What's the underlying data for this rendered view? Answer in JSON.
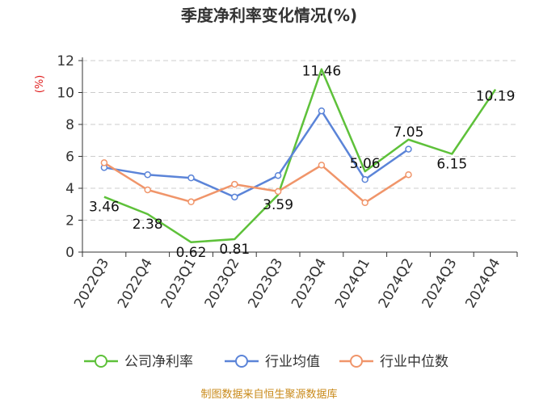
{
  "chart_data": {
    "type": "line",
    "title": "季度净利率变化情况(%)",
    "unit_label": "(%)",
    "categories": [
      "2022Q3",
      "2022Q4",
      "2023Q1",
      "2023Q2",
      "2023Q3",
      "2023Q4",
      "2024Q1",
      "2024Q2",
      "2024Q3",
      "2024Q4"
    ],
    "ylim": [
      0,
      12
    ],
    "yticks": [
      0,
      2,
      4,
      6,
      8,
      10,
      12
    ],
    "grid": true,
    "legend_position": "bottom",
    "series": [
      {
        "name": "公司净利率",
        "color": "#5ec13a",
        "values": [
          3.46,
          2.38,
          0.62,
          0.81,
          3.59,
          11.46,
          5.06,
          7.05,
          6.15,
          10.19
        ],
        "labels": [
          "3.46",
          "2.38",
          "0.62",
          "0.81",
          "3.59",
          "11.46",
          "5.06",
          "7.05",
          "6.15",
          "10.19"
        ]
      },
      {
        "name": "行业均值",
        "color": "#5b84d8",
        "values": [
          5.3,
          4.85,
          4.65,
          3.45,
          4.8,
          8.85,
          4.55,
          6.45,
          null,
          null
        ]
      },
      {
        "name": "行业中位数",
        "color": "#f0956a",
        "values": [
          5.6,
          3.9,
          3.15,
          4.25,
          3.8,
          5.45,
          3.1,
          4.85,
          null,
          null
        ]
      }
    ]
  },
  "source": "制图数据来自恒生聚源数据库"
}
